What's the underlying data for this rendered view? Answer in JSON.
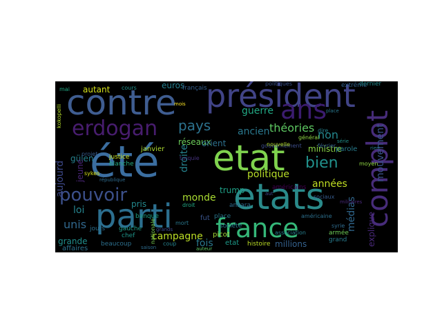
{
  "figure": {
    "background": "#ffffff",
    "panel_background": "#000000"
  },
  "words": [
    {
      "text": "été",
      "color": "#3b6ea0"
    },
    {
      "text": "etat",
      "color": "#7fd34e"
    },
    {
      "text": "etats",
      "color": "#2a8a8a"
    },
    {
      "text": "contre",
      "color": "#3f5d91"
    },
    {
      "text": "président",
      "color": "#414487"
    },
    {
      "text": "parti",
      "color": "#2c6f8f"
    },
    {
      "text": "france",
      "color": "#35b779"
    },
    {
      "text": "complot",
      "color": "#472c7a"
    },
    {
      "text": "ans",
      "color": "#3b1c6f"
    },
    {
      "text": "erdogan",
      "color": "#481d6f"
    },
    {
      "text": "pouvoir",
      "color": "#3c508b"
    },
    {
      "text": "pays",
      "color": "#2c728e"
    },
    {
      "text": "bien",
      "color": "#21918c"
    },
    {
      "text": "théories",
      "color": "#5ec962"
    },
    {
      "text": "campagne",
      "color": "#bddf26"
    },
    {
      "text": "monde",
      "color": "#aadc32"
    },
    {
      "text": "politique",
      "color": "#b8de29"
    },
    {
      "text": "ancien",
      "color": "#2a788e"
    },
    {
      "text": "guerre",
      "color": "#22a884"
    },
    {
      "text": "non",
      "color": "#24878e"
    },
    {
      "text": "aujourd",
      "color": "#3e4989"
    },
    {
      "text": "unis",
      "color": "#31688e"
    },
    {
      "text": "années",
      "color": "#c2df23"
    },
    {
      "text": "médias",
      "color": "#31688e"
    },
    {
      "text": "mouvement",
      "color": "#3b528b"
    },
    {
      "text": "réseaux",
      "color": "#6ccd5a"
    },
    {
      "text": "droite",
      "color": "#26828e"
    },
    {
      "text": "ministre",
      "color": "#8bd646"
    },
    {
      "text": "fois",
      "color": "#2a788e"
    },
    {
      "text": "euros",
      "color": "#277f8e"
    },
    {
      "text": "autant",
      "color": "#d5e21a"
    },
    {
      "text": "explique",
      "color": "#482878"
    },
    {
      "text": "grande",
      "color": "#218f8d"
    },
    {
      "text": "loi",
      "color": "#25848e"
    },
    {
      "text": "trump",
      "color": "#1fa187"
    },
    {
      "text": "millions",
      "color": "#34618d"
    },
    {
      "text": "orient",
      "color": "#2d708e"
    },
    {
      "text": "pris",
      "color": "#23898e"
    },
    {
      "text": "gülen",
      "color": "#26828e"
    },
    {
      "text": "janvier",
      "color": "#addc30"
    },
    {
      "text": "jeune",
      "color": "#482475"
    },
    {
      "text": "fut",
      "color": "#3a548c"
    },
    {
      "text": "etat",
      "color": "#1e9b8a"
    },
    {
      "text": "société",
      "color": "#2a788e"
    },
    {
      "text": "histoire",
      "color": "#bddf26"
    },
    {
      "text": "affaires",
      "color": "#2c728e"
    },
    {
      "text": "beaucoup",
      "color": "#2d708e"
    },
    {
      "text": "français",
      "color": "#355f8d"
    },
    {
      "text": "parole",
      "color": "#287c8e"
    },
    {
      "text": "extrême",
      "color": "#33638d"
    },
    {
      "text": "dernier",
      "color": "#238a8d"
    },
    {
      "text": "justice",
      "color": "#cae11f"
    },
    {
      "text": "blanche",
      "color": "#25ab82"
    },
    {
      "text": "gauche",
      "color": "#1f9e89"
    },
    {
      "text": "jours",
      "color": "#2d708e"
    },
    {
      "text": "chef",
      "color": "#1f968b"
    },
    {
      "text": "banque",
      "color": "#20a386"
    },
    {
      "text": "place",
      "color": "#2a788e"
    },
    {
      "text": "picot",
      "color": "#a5db36"
    },
    {
      "text": "américains",
      "color": "#440154"
    },
    {
      "text": "américaine",
      "color": "#2d708e"
    },
    {
      "text": "ankara",
      "color": "#2f6c8e"
    },
    {
      "text": "armée",
      "color": "#6ece58"
    },
    {
      "text": "grand",
      "color": "#287c8e"
    },
    {
      "text": "février",
      "color": "#34618d"
    },
    {
      "text": "gouvernement",
      "color": "#3d4e8a"
    },
    {
      "text": "général",
      "color": "#90d743"
    },
    {
      "text": "cours",
      "color": "#21918c"
    },
    {
      "text": "mai",
      "color": "#22a884"
    },
    {
      "text": "coup",
      "color": "#26828e"
    },
    {
      "text": "mort",
      "color": "#2a788e"
    },
    {
      "text": "droit",
      "color": "#22a884"
    },
    {
      "text": "turquie",
      "color": "#46327e"
    },
    {
      "text": "sykes",
      "color": "#d8e219"
    },
    {
      "text": "projet",
      "color": "#365c8d"
    },
    {
      "text": "kokopelli",
      "color": "#b5de2b"
    },
    {
      "text": "association",
      "color": "#277f8e"
    },
    {
      "text": "nouvelle",
      "color": "#b2dd2d"
    },
    {
      "text": "moyen",
      "color": "#90d743"
    },
    {
      "text": "politiques",
      "color": "#3b528b"
    },
    {
      "text": "nationale",
      "color": "#7ad151"
    },
    {
      "text": "syrie",
      "color": "#2f6c8e"
    },
    {
      "text": "sociaux",
      "color": "#365c8d"
    },
    {
      "text": "militaires",
      "color": "#482878"
    },
    {
      "text": "dire",
      "color": "#26828e"
    },
    {
      "text": "mois",
      "color": "#fde725"
    },
    {
      "text": "rien",
      "color": "#287c8e"
    },
    {
      "text": "aut",
      "color": "#3e4a89"
    },
    {
      "text": "place",
      "color": "#2a788e"
    },
    {
      "text": "saison",
      "color": "#2f6c8e"
    },
    {
      "text": "grands",
      "color": "#3e4989"
    },
    {
      "text": "auteur",
      "color": "#5ec962"
    },
    {
      "text": "série",
      "color": "#21918c"
    },
    {
      "text": "république",
      "color": "#2f6c8e"
    }
  ]
}
